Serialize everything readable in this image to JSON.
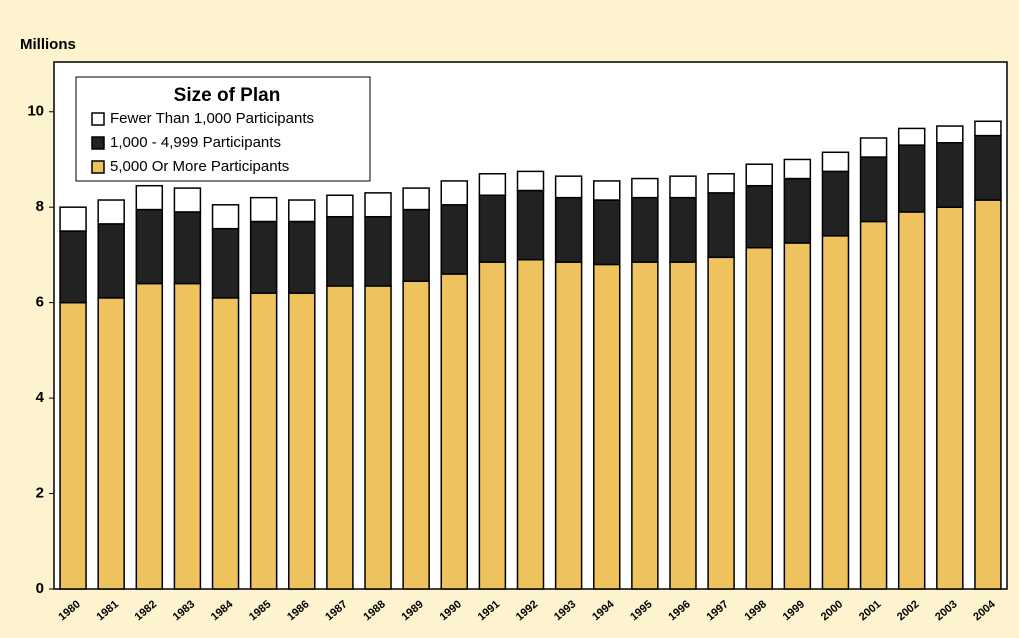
{
  "chart_data": {
    "type": "stacked_bar",
    "y_label": "Millions",
    "legend_title": "Size of Plan",
    "categories": [
      "1980",
      "1981",
      "1982",
      "1983",
      "1984",
      "1985",
      "1986",
      "1987",
      "1988",
      "1989",
      "1990",
      "1991",
      "1992",
      "1993",
      "1994",
      "1995",
      "1996",
      "1997",
      "1998",
      "1999",
      "2000",
      "2001",
      "2002",
      "2003",
      "2004"
    ],
    "series": [
      {
        "name": "5,000 Or More Participants",
        "color": "#eec25c",
        "values": [
          6.0,
          6.1,
          6.4,
          6.4,
          6.1,
          6.2,
          6.2,
          6.35,
          6.35,
          6.45,
          6.6,
          6.85,
          6.9,
          6.85,
          6.8,
          6.85,
          6.85,
          6.95,
          7.15,
          7.25,
          7.4,
          7.7,
          7.9,
          8.0,
          8.15
        ]
      },
      {
        "name": "1,000 - 4,999 Participants",
        "color": "#222222",
        "values": [
          1.5,
          1.55,
          1.55,
          1.5,
          1.45,
          1.5,
          1.5,
          1.45,
          1.45,
          1.5,
          1.45,
          1.4,
          1.45,
          1.35,
          1.35,
          1.35,
          1.35,
          1.35,
          1.3,
          1.35,
          1.35,
          1.35,
          1.4,
          1.35,
          1.35
        ]
      },
      {
        "name": "Fewer Than 1,000 Participants",
        "color": "#ffffff",
        "values": [
          0.5,
          0.5,
          0.5,
          0.5,
          0.5,
          0.5,
          0.45,
          0.45,
          0.5,
          0.45,
          0.5,
          0.45,
          0.4,
          0.45,
          0.4,
          0.4,
          0.45,
          0.4,
          0.45,
          0.4,
          0.4,
          0.4,
          0.35,
          0.35,
          0.3
        ]
      }
    ],
    "ylim": [
      0,
      11
    ],
    "yticks": [
      0,
      2,
      4,
      6,
      8,
      10
    ]
  }
}
